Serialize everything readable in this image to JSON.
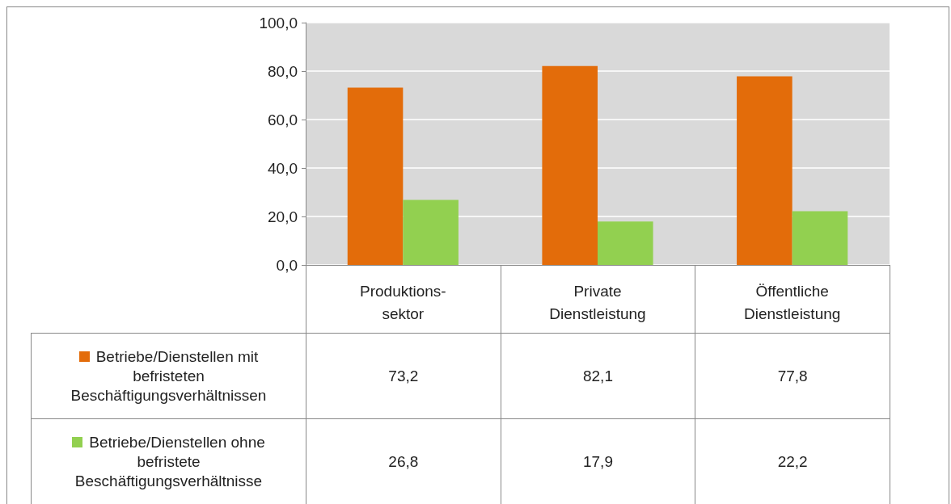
{
  "chart_data": {
    "type": "bar",
    "categories": [
      "Produktions-\nsektor",
      "Private\nDienstleistung",
      "Öffentliche\nDienstleistung"
    ],
    "series": [
      {
        "name": "Betriebe/Dienstellen mit befristeten Beschäftigungsverhältnissen",
        "color": "#e36c0a",
        "values": [
          73.2,
          82.1,
          77.8
        ],
        "value_labels": [
          "73,2",
          "82,1",
          "77,8"
        ]
      },
      {
        "name": "Betriebe/Dienstellen ohne befristete Beschäftigungsverhältnisse",
        "color": "#92d050",
        "values": [
          26.8,
          17.9,
          22.2
        ],
        "value_labels": [
          "26,8",
          "17,9",
          "22,2"
        ]
      }
    ],
    "ylim": [
      0,
      100
    ],
    "yticks": [
      {
        "value": 0,
        "label": "0,0"
      },
      {
        "value": 20,
        "label": "20,0"
      },
      {
        "value": 40,
        "label": "40,0"
      },
      {
        "value": 60,
        "label": "60,0"
      },
      {
        "value": 80,
        "label": "80,0"
      },
      {
        "value": 100,
        "label": "100,0"
      }
    ],
    "grid": "y",
    "legend": "bottom left"
  }
}
